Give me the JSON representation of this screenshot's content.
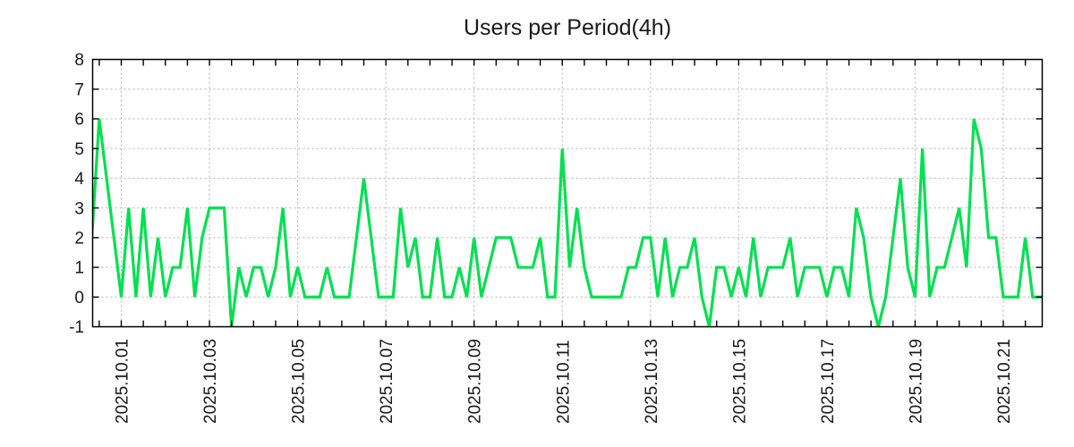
{
  "title": "Users per Period(4h)",
  "chart_data": {
    "type": "line",
    "title": "Users per Period(4h)",
    "grid": true,
    "legend": false,
    "background_color": "#ffffff",
    "grid_color": "#b0b0b0",
    "axis_color": "#000000",
    "x_axis": {
      "tick_labels": [
        "2025.10.01",
        "2025.10.03",
        "2025.10.05",
        "2025.10.07",
        "2025.10.09",
        "2025.10.11",
        "2025.10.13",
        "2025.10.15",
        "2025.10.17",
        "2025.10.19",
        "2025.10.21"
      ],
      "label_interval_days": 2,
      "minor_tick_interval_hours": 12,
      "start": "2025.09.30 08:00",
      "end": "2025.10.22 00:00",
      "step_hours": 4
    },
    "y_axis": {
      "tick_labels": [
        "-1",
        "0",
        "1",
        "2",
        "3",
        "4",
        "5",
        "6",
        "7",
        "8"
      ],
      "min": -1,
      "max": 8
    },
    "series": [
      {
        "name": "users",
        "color": "#00e050",
        "values": [
          2,
          6,
          4,
          2,
          0,
          3,
          0,
          3,
          0,
          2,
          0,
          1,
          1,
          3,
          0,
          2,
          3,
          3,
          3,
          -1,
          1,
          0,
          1,
          1,
          0,
          1,
          3,
          0,
          1,
          0,
          0,
          0,
          1,
          0,
          0,
          0,
          2,
          4,
          2,
          0,
          0,
          0,
          3,
          1,
          2,
          0,
          0,
          2,
          0,
          0,
          1,
          0,
          2,
          0,
          1,
          2,
          2,
          2,
          1,
          1,
          1,
          2,
          0,
          0,
          5,
          1,
          3,
          1,
          0,
          0,
          0,
          0,
          0,
          1,
          1,
          2,
          2,
          0,
          2,
          0,
          1,
          1,
          2,
          0,
          -1,
          1,
          1,
          0,
          1,
          0,
          2,
          0,
          1,
          1,
          1,
          2,
          0,
          1,
          1,
          1,
          0,
          1,
          1,
          0,
          3,
          2,
          0,
          -1,
          0,
          2,
          4,
          1,
          0,
          5,
          0,
          1,
          1,
          2,
          3,
          1,
          6,
          5,
          2,
          2,
          0,
          0,
          0,
          2,
          0,
          0,
          0
        ]
      }
    ]
  }
}
